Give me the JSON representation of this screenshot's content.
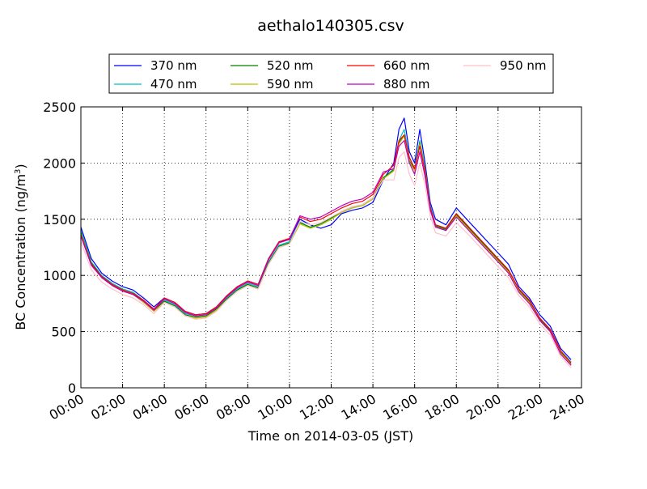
{
  "chart_data": {
    "type": "line",
    "title": "aethalo140305.csv",
    "xlabel": "Time on 2014-03-05 (JST)",
    "ylabel": "BC Concentration (ng/m",
    "ylabel_sup": "3",
    "ylabel_close": ")",
    "xlim": [
      0,
      24
    ],
    "ylim": [
      0,
      2500
    ],
    "x_ticks": [
      0,
      2,
      4,
      6,
      8,
      10,
      12,
      14,
      16,
      18,
      20,
      22,
      24
    ],
    "x_tick_labels": [
      "00:00",
      "02:00",
      "04:00",
      "06:00",
      "08:00",
      "10:00",
      "12:00",
      "14:00",
      "16:00",
      "18:00",
      "20:00",
      "22:00",
      "24:00"
    ],
    "y_ticks": [
      0,
      500,
      1000,
      1500,
      2000,
      2500
    ],
    "y_tick_labels": [
      "0",
      "500",
      "1000",
      "1500",
      "2000",
      "2500"
    ],
    "grid": true,
    "legend_position": "top",
    "x": [
      0.0,
      0.5,
      1.0,
      1.5,
      2.0,
      2.5,
      3.0,
      3.5,
      4.0,
      4.5,
      5.0,
      5.5,
      6.0,
      6.5,
      7.0,
      7.5,
      8.0,
      8.5,
      9.0,
      9.5,
      10.0,
      10.5,
      11.0,
      11.5,
      12.0,
      12.5,
      13.0,
      13.5,
      14.0,
      14.5,
      15.0,
      15.25,
      15.5,
      15.75,
      16.0,
      16.25,
      16.5,
      16.75,
      17.0,
      17.5,
      18.0,
      18.5,
      19.0,
      19.5,
      20.0,
      20.5,
      21.0,
      21.5,
      22.0,
      22.5,
      23.0,
      23.5
    ],
    "series": [
      {
        "name": "370 nm",
        "color": "#0000ff",
        "values": [
          1430,
          1150,
          1020,
          950,
          900,
          870,
          800,
          720,
          800,
          760,
          680,
          650,
          660,
          720,
          820,
          900,
          950,
          920,
          1150,
          1300,
          1320,
          1500,
          1450,
          1420,
          1450,
          1550,
          1580,
          1600,
          1650,
          1850,
          2000,
          2300,
          2400,
          2100,
          2000,
          2300,
          2000,
          1650,
          1500,
          1450,
          1600,
          1500,
          1400,
          1300,
          1200,
          1100,
          900,
          800,
          650,
          550,
          350,
          250
        ]
      },
      {
        "name": "470 nm",
        "color": "#00bfbf",
        "values": [
          1400,
          1120,
          1000,
          930,
          880,
          850,
          780,
          700,
          780,
          740,
          660,
          640,
          650,
          710,
          800,
          880,
          930,
          900,
          1120,
          1270,
          1300,
          1480,
          1420,
          1450,
          1500,
          1560,
          1600,
          1620,
          1680,
          1860,
          1950,
          2200,
          2300,
          2050,
          1950,
          2200,
          1950,
          1620,
          1450,
          1420,
          1550,
          1450,
          1350,
          1250,
          1150,
          1050,
          880,
          780,
          620,
          520,
          330,
          230
        ]
      },
      {
        "name": "520 nm",
        "color": "#008000",
        "values": [
          1380,
          1110,
          990,
          920,
          870,
          840,
          770,
          690,
          770,
          730,
          650,
          630,
          640,
          700,
          790,
          870,
          920,
          890,
          1110,
          1260,
          1290,
          1470,
          1430,
          1460,
          1510,
          1570,
          1610,
          1630,
          1690,
          1870,
          1940,
          2180,
          2250,
          2020,
          1940,
          2180,
          1940,
          1610,
          1440,
          1410,
          1540,
          1440,
          1340,
          1240,
          1140,
          1040,
          870,
          770,
          610,
          510,
          320,
          220
        ]
      },
      {
        "name": "590 nm",
        "color": "#bfbf00",
        "values": [
          1370,
          1100,
          980,
          910,
          860,
          830,
          760,
          680,
          760,
          720,
          640,
          620,
          630,
          690,
          780,
          860,
          910,
          880,
          1100,
          1250,
          1280,
          1460,
          1420,
          1450,
          1500,
          1560,
          1600,
          1620,
          1680,
          1860,
          1930,
          2170,
          2240,
          2010,
          1930,
          2170,
          1930,
          1600,
          1430,
          1400,
          1530,
          1430,
          1330,
          1230,
          1130,
          1030,
          860,
          760,
          600,
          500,
          310,
          210
        ]
      },
      {
        "name": "660 nm",
        "color": "#ff0000",
        "values": [
          1360,
          1100,
          990,
          920,
          870,
          840,
          780,
          700,
          800,
          760,
          680,
          650,
          660,
          720,
          820,
          900,
          950,
          920,
          1150,
          1300,
          1330,
          1520,
          1480,
          1500,
          1550,
          1600,
          1640,
          1660,
          1720,
          1900,
          1980,
          2200,
          2250,
          2050,
          1950,
          2150,
          1920,
          1600,
          1450,
          1420,
          1550,
          1450,
          1350,
          1250,
          1150,
          1050,
          880,
          780,
          620,
          520,
          330,
          220
        ]
      },
      {
        "name": "880 nm",
        "color": "#bf00bf",
        "values": [
          1350,
          1090,
          980,
          910,
          860,
          830,
          770,
          690,
          790,
          750,
          670,
          640,
          650,
          710,
          810,
          890,
          940,
          910,
          1140,
          1290,
          1320,
          1530,
          1500,
          1520,
          1570,
          1620,
          1660,
          1680,
          1740,
          1920,
          1950,
          2150,
          2200,
          2000,
          1900,
          2100,
          1880,
          1580,
          1430,
          1400,
          1520,
          1420,
          1320,
          1220,
          1120,
          1020,
          850,
          750,
          600,
          500,
          300,
          200
        ]
      },
      {
        "name": "950 nm",
        "color": "#ffc0cb",
        "values": [
          1300,
          1050,
          940,
          880,
          830,
          800,
          740,
          660,
          760,
          720,
          640,
          610,
          620,
          680,
          780,
          860,
          910,
          880,
          1100,
          1250,
          1280,
          1480,
          1450,
          1470,
          1520,
          1570,
          1610,
          1630,
          1690,
          1850,
          1850,
          2050,
          2100,
          1900,
          1800,
          2000,
          1800,
          1530,
          1380,
          1350,
          1470,
          1380,
          1280,
          1180,
          1080,
          980,
          820,
          720,
          570,
          470,
          280,
          180
        ]
      }
    ]
  }
}
